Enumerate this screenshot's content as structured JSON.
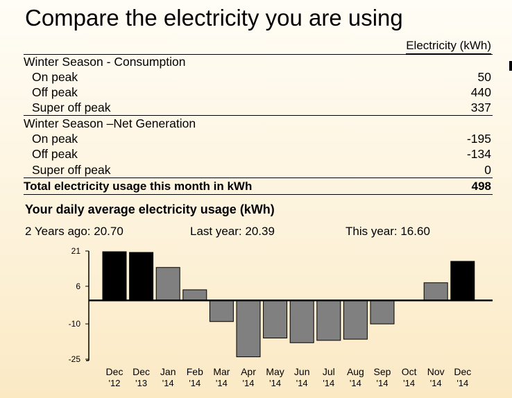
{
  "page": {
    "title": "Compare the electricity you are using",
    "column_header": "Electricity (kWh)"
  },
  "table": {
    "consumption_header": "Winter Season - Consumption",
    "consumption_rows": [
      {
        "label": "On peak",
        "value": "50"
      },
      {
        "label": "Off peak",
        "value": "440"
      },
      {
        "label": "Super off peak",
        "value": "337"
      }
    ],
    "generation_header": "Winter Season –Net Generation",
    "generation_rows": [
      {
        "label": "On peak",
        "value": "-195"
      },
      {
        "label": "Off peak",
        "value": "-134"
      },
      {
        "label": "Super off peak",
        "value": "0"
      }
    ],
    "total_label": "Total electricity usage this month in kWh",
    "total_value": "498"
  },
  "usage": {
    "title": "Your daily average electricity usage (kWh)",
    "two_years_ago": "2 Years ago: 20.70",
    "last_year": "Last year: 20.39",
    "this_year": "This year: 16.60"
  },
  "chart_data": {
    "type": "bar",
    "categories": [
      [
        "Dec",
        "'12"
      ],
      [
        "Dec",
        "'13"
      ],
      [
        "Jan",
        "'14"
      ],
      [
        "Feb",
        "'14"
      ],
      [
        "Mar",
        "'14"
      ],
      [
        "Apr",
        "'14"
      ],
      [
        "May",
        "'14"
      ],
      [
        "Jun",
        "'14"
      ],
      [
        "Jul",
        "'14"
      ],
      [
        "Aug",
        "'14"
      ],
      [
        "Sep",
        "'14"
      ],
      [
        "Oct",
        "'14"
      ],
      [
        "Nov",
        "'14"
      ],
      [
        "Dec",
        "'14"
      ]
    ],
    "values": [
      20.7,
      20.4,
      14,
      4.5,
      -9,
      -24,
      -16,
      -18,
      -17,
      -16.5,
      -10,
      0,
      7.5,
      16.6
    ],
    "highlight": [
      true,
      true,
      false,
      false,
      false,
      false,
      false,
      false,
      false,
      false,
      false,
      false,
      false,
      true
    ],
    "highlight_color": "#000000",
    "bar_color": "#808080",
    "yticks": [
      21,
      6,
      -10,
      -25
    ],
    "ylim": [
      -25,
      21
    ]
  }
}
